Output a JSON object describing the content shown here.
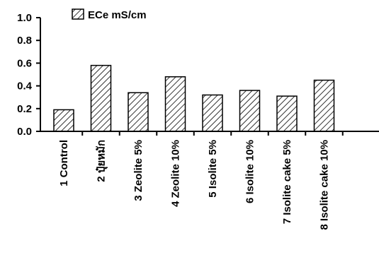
{
  "chart_data": {
    "type": "bar",
    "categories": [
      "1 Control",
      "2 ปุ๋ยหมัก",
      "3 Zeolite 5%",
      "4 Zeolite 10%",
      "5 Isolite 5%",
      "6 Isolite 10%",
      "7 Isolite cake 5%",
      "8 Isolite cake 10%"
    ],
    "series": [
      {
        "name": "ECe mS/cm",
        "values": [
          0.19,
          0.58,
          0.34,
          0.48,
          0.32,
          0.36,
          0.31,
          0.45
        ]
      }
    ],
    "ylim": [
      0,
      1.0
    ],
    "yticks": [
      "0.0",
      "0.2",
      "0.4",
      "0.6",
      "0.8",
      "1.0"
    ],
    "legend_position": "top-left",
    "bar_pattern": "diagonal-hatch",
    "bar_color": "#000000",
    "grid": false
  }
}
